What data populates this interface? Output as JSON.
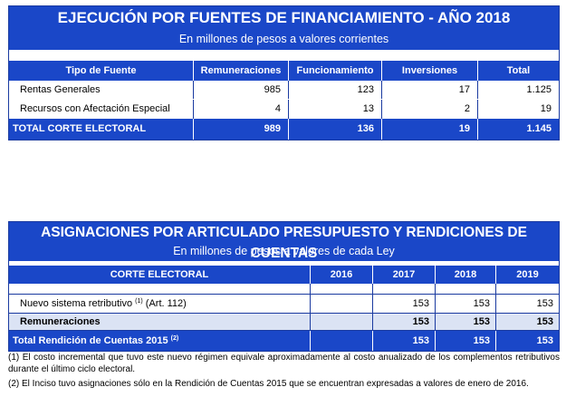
{
  "table1": {
    "title": "EJECUCIÓN POR FUENTES DE FINANCIAMIENTO - AÑO 2018",
    "subtitle": "En millones de pesos a valores corrientes",
    "headers": [
      "Tipo de Fuente",
      "Remuneraciones",
      "Funcionamiento",
      "Inversiones",
      "Total"
    ],
    "rows": [
      [
        "Rentas Generales",
        "985",
        "123",
        "17",
        "1.125"
      ],
      [
        "Recursos con Afectación Especial",
        "4",
        "13",
        "2",
        "19"
      ]
    ],
    "total": [
      "TOTAL CORTE ELECTORAL",
      "989",
      "136",
      "19",
      "1.145"
    ]
  },
  "table2": {
    "title": "ASIGNACIONES POR ARTICULADO PRESUPUESTO Y RENDICIONES DE CUENTAS",
    "subtitle": "En millones de pesos  a valores de cada Ley",
    "headers": [
      "CORTE ELECTORAL",
      "2016",
      "2017",
      "2018",
      "2019"
    ],
    "row": {
      "label": "Nuevo sistema retributivo",
      "sup": "(1)",
      "label_suffix": "(Art. 112)",
      "values": [
        "",
        "153",
        "153",
        "153"
      ]
    },
    "subtotal": [
      "Remuneraciones",
      "",
      "153",
      "153",
      "153"
    ],
    "total": {
      "label": "Total Rendición de Cuentas 2015",
      "sup": "(2)",
      "values": [
        "",
        "153",
        "153",
        "153"
      ]
    }
  },
  "notes": [
    "(1) El costo incremental que tuvo este nuevo régimen equivale aproximadamente al costo anualizado de los complementos retributivos durante el último ciclo electoral.",
    "(2) El Inciso tuvo asignaciones sólo en la Rendición de Cuentas 2015 que se encuentran expresadas a valores de enero de 2016."
  ],
  "colors": {
    "header_blue": "#1a47c8",
    "subtotal_fill": "#dbe3f4"
  }
}
